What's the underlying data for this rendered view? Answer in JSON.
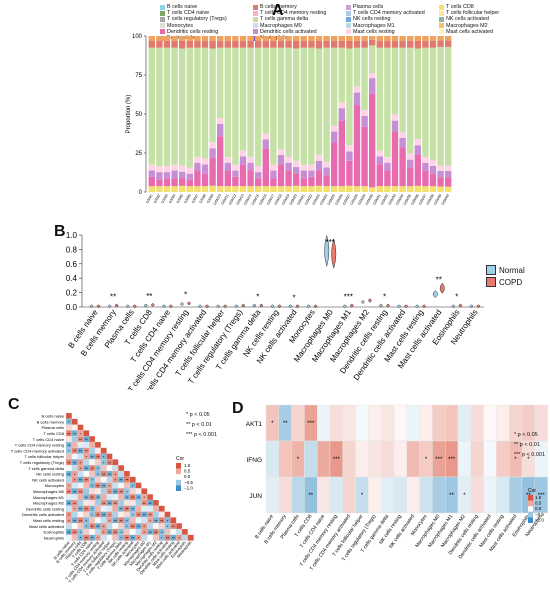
{
  "panels": {
    "a": "A",
    "b": "B",
    "c": "C",
    "d": "D"
  },
  "colors": {
    "cells": [
      "#8fd3e8",
      "#e07a6e",
      "#c9a0d8",
      "#f3e06d",
      "#7ea86b",
      "#f2b6c8",
      "#b6c7e6",
      "#ffe4a8",
      "#a6a6a6",
      "#c5e1a5",
      "#6fa8dc",
      "#8fb3a6",
      "#e3ded6",
      "#d9d6f2",
      "#bdd7e7",
      "#f5c26b",
      "#e86bb0",
      "#c78fd3",
      "#ffd2e5",
      "#fff1c1",
      "#f0a35e",
      "#7a55c8"
    ],
    "normal": "#9fd0e8",
    "copd": "#e8796c",
    "pos": "#d9553f",
    "neg": "#3a8fc4"
  },
  "cell_types": [
    "B cells naive",
    "B cells memory",
    "Plasma cells",
    "T cells CD8",
    "T cells CD4 naive",
    "T cells CD4 memory resting",
    "T cells CD4 memory activated",
    "T cells follicular helper",
    "T cells regulatory (Tregs)",
    "T cells gamma delta",
    "NK cells resting",
    "NK cells activated",
    "Monocytes",
    "Macrophages M0",
    "Macrophages M1",
    "Macrophages M2",
    "Dendritic cells resting",
    "Dendritic cells activated",
    "Mast cells resting",
    "Mast cells activated",
    "Eosinophils",
    "Neutrophils"
  ],
  "legend_a": [
    "B cells naive",
    "B cells memory",
    "Plasma cells",
    "T cells CD8",
    "T cells CD4 naive",
    "T cells CD4 memory resting",
    "T cells CD4 memory activated",
    "T cells follicular helper",
    "T cells regulatory (Tregs)",
    "T cells gamma delta",
    "NK cells resting",
    "NK cells activated",
    "Monocytes",
    "Macrophages M0",
    "Macrophages M1",
    "Macrophages M2",
    "Dendritic cells resting",
    "Dendritic cells activated",
    "Mast cells resting",
    "Mast cells activated",
    "Eosinophils",
    "Neutrophils"
  ],
  "legend_b": [
    "Normal",
    "COPD"
  ],
  "sig_notes": [
    "* p < 0.05",
    "** p < 0.01",
    "*** p < 0.001"
  ],
  "corr_title": "Cor",
  "corr_ticks": [
    "1.0",
    "0.5",
    "0.0",
    "−0.5",
    "−1.0"
  ],
  "genes": [
    "AKT1",
    "IFNG",
    "JUN"
  ],
  "chart_data": [
    {
      "type": "bar",
      "stacked": true,
      "panel": "A",
      "ylabel": "Proportion (%)",
      "yticks": [
        "0",
        "25",
        "50",
        "75",
        "100"
      ],
      "ylim": [
        0,
        100
      ],
      "categories": [
        "GSM1",
        "GSM2",
        "GSM3",
        "GSM4",
        "GSM5",
        "GSM6",
        "GSM7",
        "GSM8",
        "GSM9",
        "GSM10",
        "GSM11",
        "GSM12",
        "GSM13",
        "GSM14",
        "GSM15",
        "GSM16",
        "GSM17",
        "GSM18",
        "GSM19",
        "GSM20",
        "GSM21",
        "GSM22",
        "GSM23",
        "GSM24",
        "GSM25",
        "GSM26",
        "GSM27",
        "GSM28",
        "GSM29",
        "GSM30",
        "GSM31",
        "GSM32",
        "GSM33",
        "GSM34",
        "GSM35",
        "GSM36",
        "GSM37",
        "GSM38",
        "GSM39",
        "GSM40"
      ],
      "macrophage_m0": [
        6,
        4,
        5,
        5,
        5,
        4,
        10,
        8,
        18,
        32,
        10,
        6,
        14,
        10,
        5,
        24,
        5,
        14,
        10,
        8,
        5,
        6,
        10,
        7,
        28,
        42,
        16,
        52,
        38,
        60,
        14,
        10,
        35,
        25,
        12,
        20,
        10,
        8,
        6,
        6
      ],
      "macrophage_m2": [
        4,
        5,
        4,
        5,
        4,
        4,
        5,
        6,
        6,
        8,
        5,
        4,
        5,
        5,
        4,
        6,
        5,
        6,
        5,
        4,
        5,
        4,
        6,
        5,
        7,
        8,
        6,
        8,
        7,
        10,
        5,
        5,
        7,
        6,
        5,
        6,
        5,
        5,
        4,
        4
      ],
      "mast_resting": [
        75,
        76,
        76,
        75,
        75,
        77,
        70,
        71,
        60,
        45,
        70,
        75,
        66,
        70,
        76,
        55,
        75,
        65,
        70,
        72,
        75,
        75,
        68,
        73,
        50,
        35,
        62,
        25,
        40,
        18,
        66,
        70,
        43,
        54,
        68,
        58,
        70,
        72,
        76,
        76
      ]
    },
    {
      "type": "violin",
      "panel": "B",
      "yticks": [
        "0.0",
        "0.2",
        "0.4",
        "0.6",
        "0.8",
        "1.0"
      ],
      "ylim": [
        0,
        1
      ],
      "series": [
        {
          "name": "Normal",
          "values": [
            0.01,
            0.01,
            0.01,
            0.02,
            0.01,
            0.04,
            0.01,
            0.01,
            0.01,
            0.02,
            0.01,
            0.01,
            0.01,
            0.78,
            0.01,
            0.07,
            0.02,
            0.01,
            0.01,
            0.18,
            0.01,
            0.01
          ]
        },
        {
          "name": "COPD",
          "values": [
            0.01,
            0.02,
            0.01,
            0.03,
            0.01,
            0.05,
            0.01,
            0.01,
            0.02,
            0.02,
            0.01,
            0.01,
            0.01,
            0.74,
            0.02,
            0.09,
            0.02,
            0.01,
            0.01,
            0.26,
            0.02,
            0.01
          ]
        }
      ],
      "significance": [
        "",
        "**",
        "",
        "**",
        "",
        "*",
        "",
        "",
        "",
        "*",
        "",
        "*",
        "",
        "***",
        "***",
        "",
        "*",
        "",
        "",
        "**",
        "*",
        ""
      ]
    },
    {
      "type": "heatmap",
      "panel": "C",
      "rows": [
        "B cells naive",
        "B cells memory",
        "Plasma cells",
        "T cells CD8",
        "T cells CD4 naive",
        "T cells CD4 memory resting",
        "T cells CD4 memory activated",
        "T cells follicular helper",
        "T cells regulatory (Tregs)",
        "T cells gamma delta",
        "NK cells resting",
        "NK cells activated",
        "Monocytes",
        "Macrophages M0",
        "Macrophages M1",
        "Macrophages M2",
        "Dendritic cells resting",
        "Dendritic cells activated",
        "Mast cells resting",
        "Mast cells activated",
        "Eosinophils",
        "Neutrophils"
      ],
      "colorbar": [
        -1,
        1
      ]
    },
    {
      "type": "heatmap",
      "panel": "D",
      "rows": [
        "AKT1",
        "IFNG",
        "JUN"
      ],
      "columns": [
        "B cells naive",
        "B cells memory",
        "Plasma cells",
        "T cells CD8",
        "T cells CD4 naive",
        "T cells CD4 memory resting",
        "T cells CD4 memory activated",
        "T cells follicular helper",
        "T cells regulatory (Tregs)",
        "T cells gamma delta",
        "NK cells resting",
        "NK cells activated",
        "Monocytes",
        "Macrophages M0",
        "Macrophages M1",
        "Macrophages M2",
        "Dendritic cells resting",
        "Dendritic cells activated",
        "Mast cells resting",
        "Mast cells activated",
        "Eosinophils",
        "Neutrophils"
      ],
      "values": [
        [
          0.35,
          -0.45,
          0.25,
          0.55,
          -0.1,
          0.2,
          0.15,
          -0.05,
          0.1,
          0.15,
          0.05,
          -0.1,
          0.1,
          0.3,
          0.35,
          -0.15,
          0.2,
          0.05,
          0.1,
          0.25,
          0.3,
          0.2
        ],
        [
          -0.2,
          0.35,
          0.45,
          -0.3,
          0.5,
          0.6,
          0.25,
          0.1,
          0.15,
          0.2,
          0.1,
          0.4,
          0.3,
          0.55,
          0.6,
          -0.1,
          0.25,
          -0.05,
          0.3,
          0.4,
          0.2,
          -0.1
        ],
        [
          -0.15,
          0.2,
          -0.35,
          -0.55,
          0.15,
          -0.2,
          0.25,
          -0.3,
          0.1,
          -0.15,
          -0.2,
          0.1,
          -0.25,
          -0.45,
          -0.5,
          -0.15,
          0.2,
          -0.1,
          -0.2,
          -0.45,
          -0.55,
          -0.5
        ]
      ],
      "significance": [
        [
          "*",
          "**",
          "",
          "***",
          "",
          "",
          "",
          "",
          "",
          "",
          "",
          "",
          "",
          "",
          "",
          "",
          "",
          "",
          "",
          "",
          "",
          ""
        ],
        [
          "",
          "",
          "*",
          "",
          "",
          "***",
          "",
          "",
          "",
          "",
          "",
          "",
          "*",
          "***",
          "***",
          "",
          "",
          "",
          "",
          "*",
          "*",
          ""
        ],
        [
          "",
          "",
          "",
          "**",
          "",
          "",
          "",
          "*",
          "",
          "",
          "",
          "",
          "",
          "",
          "**",
          "*",
          "",
          "",
          "",
          "",
          "**",
          "***"
        ]
      ],
      "colorbar": [
        -1,
        1
      ]
    }
  ]
}
